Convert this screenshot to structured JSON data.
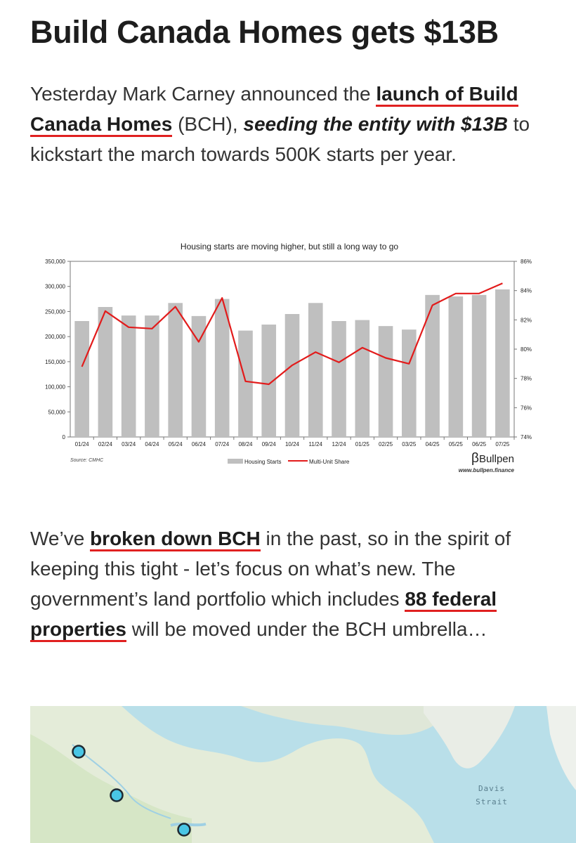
{
  "article": {
    "title": "Build Canada Homes gets $13B",
    "p1": {
      "t1": "Yesterday Mark Carney announced the ",
      "link1": "launch of Build Canada Homes",
      "t2": " (BCH), ",
      "emph": "seeding the entity with $13B",
      "t3": " to kickstart the march towards 500K starts per year."
    },
    "p2": {
      "t1": "We’ve ",
      "link1": "broken down BCH",
      "t2": " in the past, so in the spirit of keeping this tight - let’s focus on what’s new. The government’s land portfolio which includes ",
      "link2": "88 federal properties",
      "t3": " will be moved under the BCH umbrella…"
    }
  },
  "chart_data": {
    "type": "bar",
    "title": "Housing starts are moving higher, but still a long way to go",
    "categories": [
      "01/24",
      "02/24",
      "03/24",
      "04/24",
      "05/24",
      "06/24",
      "07/24",
      "08/24",
      "09/24",
      "10/24",
      "11/24",
      "12/24",
      "01/25",
      "02/25",
      "03/25",
      "04/25",
      "05/25",
      "06/25",
      "07/25"
    ],
    "series": [
      {
        "name": "Housing Starts",
        "axis": "left",
        "type": "bar",
        "color": "#bfbfbf",
        "values": [
          231000,
          259000,
          242000,
          242000,
          267000,
          241000,
          275000,
          212000,
          224000,
          245000,
          267000,
          231000,
          233000,
          221000,
          214000,
          283000,
          280000,
          283000,
          294000
        ]
      },
      {
        "name": "Multi-Unit Share",
        "axis": "right",
        "type": "line",
        "color": "#e21b1b",
        "values": [
          78.8,
          82.6,
          81.5,
          81.4,
          82.9,
          80.5,
          83.5,
          77.8,
          77.6,
          78.9,
          79.8,
          79.1,
          80.1,
          79.4,
          79.0,
          83.0,
          83.8,
          83.8,
          84.5
        ]
      }
    ],
    "y_left": {
      "min": 0,
      "max": 350000,
      "step": 50000,
      "ticks": [
        "0",
        "50,000",
        "100,000",
        "150,000",
        "200,000",
        "250,000",
        "300,000",
        "350,000"
      ]
    },
    "y_right": {
      "min": 74,
      "max": 86,
      "step": 2,
      "ticks": [
        "74%",
        "76%",
        "78%",
        "80%",
        "82%",
        "84%",
        "86%"
      ]
    },
    "grid": false,
    "legend_position": "bottom",
    "source": "Source: CMHC",
    "brand": "Bullpen",
    "brand_url": "www.bullpen.finance"
  },
  "map": {
    "label_line1": "Davis",
    "label_line2": "Strait",
    "pin_count": 3
  }
}
